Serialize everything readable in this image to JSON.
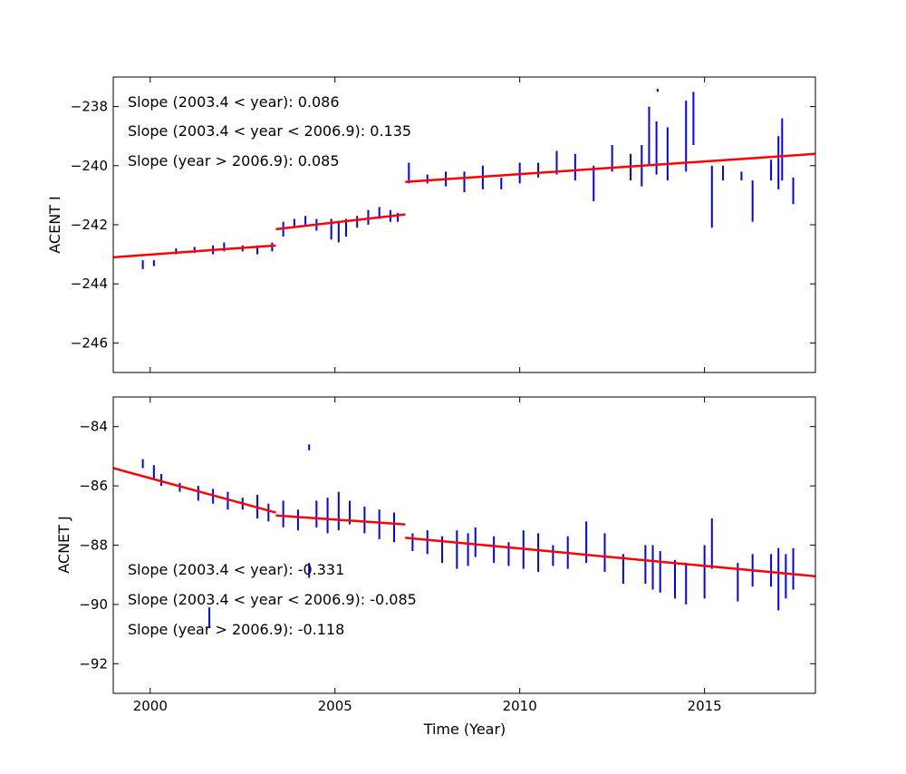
{
  "chart_data": [
    {
      "type": "scatter",
      "style": "vertical error bars with piecewise linear fits",
      "ylabel": "ACENT I",
      "xlabel": "",
      "xlim": [
        1999,
        2018
      ],
      "ylim": [
        -247,
        -237
      ],
      "yticks": [
        -238,
        -240,
        -242,
        -244,
        -246
      ],
      "xticks": [
        2000,
        2005,
        2010,
        2015
      ],
      "annotations": [
        "Slope (2003.4 < year):  0.086",
        "Slope (2003.4 <  year < 2006.9): 0.135",
        "Slope (year > 2006.9):  0.085"
      ],
      "data_color": "#0000ff",
      "fit_color": "#ff0000",
      "bars": [
        [
          1999.8,
          -243.5,
          -243.2
        ],
        [
          2000.1,
          -243.4,
          -243.2
        ],
        [
          2000.7,
          -243.0,
          -242.8
        ],
        [
          2001.2,
          -242.95,
          -242.75
        ],
        [
          2001.7,
          -243.0,
          -242.7
        ],
        [
          2002.0,
          -242.9,
          -242.6
        ],
        [
          2002.5,
          -242.9,
          -242.7
        ],
        [
          2002.9,
          -243.0,
          -242.7
        ],
        [
          2003.3,
          -242.9,
          -242.6
        ],
        [
          2003.6,
          -242.4,
          -241.9
        ],
        [
          2003.9,
          -242.1,
          -241.8
        ],
        [
          2004.2,
          -242.0,
          -241.7
        ],
        [
          2004.5,
          -242.2,
          -241.8
        ],
        [
          2004.9,
          -242.5,
          -241.8
        ],
        [
          2005.1,
          -242.6,
          -241.9
        ],
        [
          2005.3,
          -242.4,
          -241.8
        ],
        [
          2005.6,
          -242.1,
          -241.7
        ],
        [
          2005.9,
          -242.0,
          -241.5
        ],
        [
          2006.2,
          -241.8,
          -241.4
        ],
        [
          2006.5,
          -241.9,
          -241.5
        ],
        [
          2006.7,
          -241.9,
          -241.6
        ],
        [
          2007.0,
          -240.6,
          -239.9
        ],
        [
          2007.5,
          -240.6,
          -240.3
        ],
        [
          2008.0,
          -240.7,
          -240.2
        ],
        [
          2008.5,
          -240.9,
          -240.2
        ],
        [
          2009.0,
          -240.8,
          -240.0
        ],
        [
          2009.5,
          -240.8,
          -240.4
        ],
        [
          2010.0,
          -240.6,
          -239.9
        ],
        [
          2010.5,
          -240.4,
          -239.9
        ],
        [
          2011.0,
          -240.3,
          -239.5
        ],
        [
          2011.5,
          -240.5,
          -239.6
        ],
        [
          2012.0,
          -241.2,
          -240.0
        ],
        [
          2012.5,
          -240.2,
          -239.3
        ],
        [
          2013.0,
          -240.5,
          -239.6
        ],
        [
          2013.3,
          -240.7,
          -239.3
        ],
        [
          2013.5,
          -240.0,
          -238.0
        ],
        [
          2013.7,
          -240.3,
          -238.5
        ],
        [
          2013.73,
          -237.5,
          -237.4
        ],
        [
          2014.0,
          -240.5,
          -238.7
        ],
        [
          2014.5,
          -240.2,
          -237.8
        ],
        [
          2014.7,
          -239.3,
          -237.5
        ],
        [
          2015.2,
          -242.1,
          -240.0
        ],
        [
          2015.5,
          -240.5,
          -240.0
        ],
        [
          2016.0,
          -240.5,
          -240.2
        ],
        [
          2016.3,
          -241.9,
          -240.5
        ],
        [
          2016.8,
          -240.5,
          -239.8
        ],
        [
          2017.0,
          -240.8,
          -239.0
        ],
        [
          2017.1,
          -240.5,
          -238.4
        ],
        [
          2017.4,
          -241.3,
          -240.4
        ]
      ],
      "fits": [
        [
          [
            1999,
            -243.1
          ],
          [
            2003.4,
            -242.7
          ]
        ],
        [
          [
            2003.4,
            -242.15
          ],
          [
            2006.9,
            -241.65
          ]
        ],
        [
          [
            2006.9,
            -240.55
          ],
          [
            2018,
            -239.6
          ]
        ]
      ]
    },
    {
      "type": "scatter",
      "style": "vertical error bars with piecewise linear fits",
      "ylabel": "ACNET J",
      "xlabel": "Time (Year)",
      "xlim": [
        1999,
        2018
      ],
      "ylim": [
        -93,
        -83
      ],
      "yticks": [
        -84,
        -86,
        -88,
        -90,
        -92
      ],
      "xticks": [
        2000,
        2005,
        2010,
        2015
      ],
      "annotations": [
        "Slope (2003.4 < year):  -0.331",
        "Slope (2003.4 <  year < 2006.9): -0.085",
        "Slope (year > 2006.9):  -0.118"
      ],
      "data_color": "#0000ff",
      "fit_color": "#ff0000",
      "bars": [
        [
          1999.8,
          -85.4,
          -85.1
        ],
        [
          2000.1,
          -85.8,
          -85.3
        ],
        [
          2000.3,
          -86.0,
          -85.6
        ],
        [
          2000.8,
          -86.2,
          -85.9
        ],
        [
          2001.3,
          -86.5,
          -86.0
        ],
        [
          2001.6,
          -90.8,
          -90.1
        ],
        [
          2001.7,
          -86.6,
          -86.1
        ],
        [
          2002.1,
          -86.8,
          -86.2
        ],
        [
          2002.5,
          -86.8,
          -86.4
        ],
        [
          2002.9,
          -87.1,
          -86.3
        ],
        [
          2003.2,
          -87.2,
          -86.6
        ],
        [
          2003.6,
          -87.4,
          -86.5
        ],
        [
          2004.0,
          -87.5,
          -86.8
        ],
        [
          2004.3,
          -84.8,
          -84.6
        ],
        [
          2004.3,
          -89.1,
          -88.6
        ],
        [
          2004.5,
          -87.4,
          -86.5
        ],
        [
          2004.8,
          -87.6,
          -86.4
        ],
        [
          2005.1,
          -87.5,
          -86.2
        ],
        [
          2005.4,
          -87.3,
          -86.5
        ],
        [
          2005.8,
          -87.6,
          -86.7
        ],
        [
          2006.2,
          -87.8,
          -86.8
        ],
        [
          2006.6,
          -87.9,
          -86.9
        ],
        [
          2007.1,
          -88.2,
          -87.6
        ],
        [
          2007.5,
          -88.3,
          -87.5
        ],
        [
          2007.9,
          -88.6,
          -87.7
        ],
        [
          2008.3,
          -88.8,
          -87.5
        ],
        [
          2008.6,
          -88.7,
          -87.6
        ],
        [
          2008.8,
          -88.4,
          -87.4
        ],
        [
          2009.3,
          -88.6,
          -87.7
        ],
        [
          2009.7,
          -88.7,
          -87.9
        ],
        [
          2010.1,
          -88.8,
          -87.5
        ],
        [
          2010.5,
          -88.9,
          -87.6
        ],
        [
          2010.9,
          -88.7,
          -88.0
        ],
        [
          2011.3,
          -88.8,
          -87.7
        ],
        [
          2011.8,
          -88.6,
          -87.2
        ],
        [
          2012.3,
          -88.9,
          -87.6
        ],
        [
          2012.8,
          -89.3,
          -88.3
        ],
        [
          2013.4,
          -89.3,
          -88.0
        ],
        [
          2013.6,
          -89.5,
          -88.0
        ],
        [
          2013.8,
          -89.6,
          -88.2
        ],
        [
          2014.2,
          -89.8,
          -88.5
        ],
        [
          2014.5,
          -90.0,
          -88.6
        ],
        [
          2015.0,
          -89.8,
          -88.0
        ],
        [
          2015.2,
          -88.8,
          -87.1
        ],
        [
          2015.9,
          -89.9,
          -88.6
        ],
        [
          2016.3,
          -89.4,
          -88.3
        ],
        [
          2016.8,
          -89.4,
          -88.3
        ],
        [
          2017.0,
          -90.2,
          -88.1
        ],
        [
          2017.2,
          -89.8,
          -88.3
        ],
        [
          2017.4,
          -89.5,
          -88.1
        ]
      ],
      "fits": [
        [
          [
            1999,
            -85.4
          ],
          [
            2003.4,
            -86.9
          ]
        ],
        [
          [
            2003.4,
            -87.0
          ],
          [
            2006.9,
            -87.3
          ]
        ],
        [
          [
            2006.9,
            -87.75
          ],
          [
            2018,
            -89.05
          ]
        ]
      ]
    }
  ]
}
